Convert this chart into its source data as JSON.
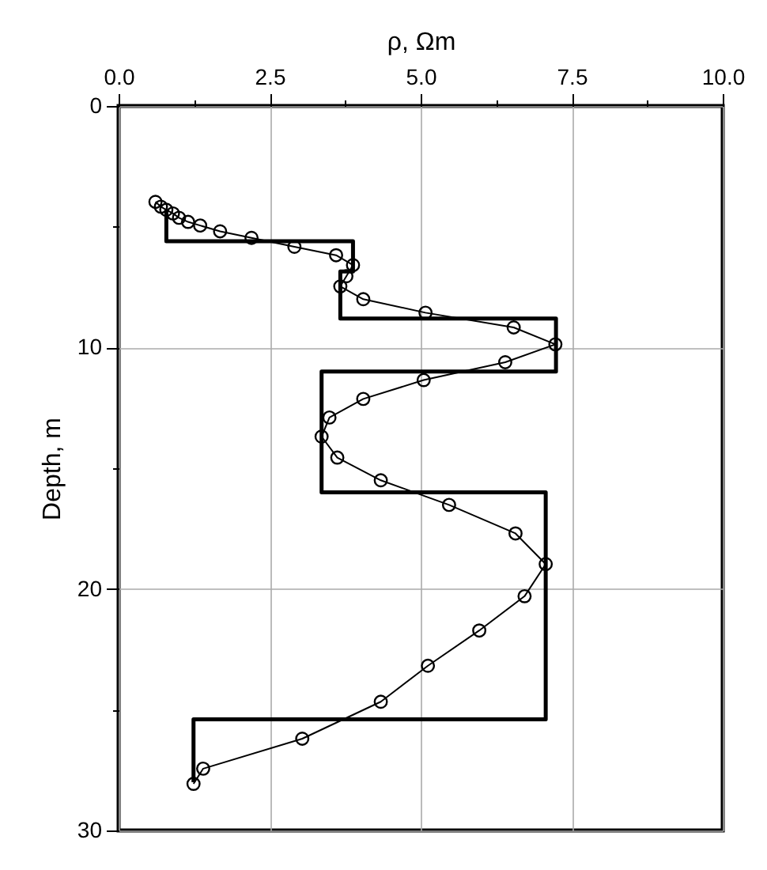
{
  "chart_data": {
    "type": "line",
    "xlabel": "ρ, Ωm",
    "ylabel": "Depth, m",
    "xlim": [
      0,
      10
    ],
    "ylim": [
      30,
      0
    ],
    "xticks": [
      {
        "value": 0,
        "label": "0.0"
      },
      {
        "value": 1.25,
        "label": null
      },
      {
        "value": 2.5,
        "label": "2.5"
      },
      {
        "value": 3.75,
        "label": null
      },
      {
        "value": 5,
        "label": "5.0"
      },
      {
        "value": 6.25,
        "label": null
      },
      {
        "value": 7.5,
        "label": "7.5"
      },
      {
        "value": 8.75,
        "label": null
      },
      {
        "value": 10,
        "label": "10.0"
      }
    ],
    "yticks": [
      0,
      {
        "value": 5,
        "label": null
      },
      10,
      {
        "value": 15,
        "label": null
      },
      20,
      {
        "value": 25,
        "label": null
      },
      30
    ],
    "grid": true,
    "marker": "circle",
    "series": [
      {
        "color": "#000000",
        "marker": "none",
        "x": [
          0.79,
          0.79,
          3.88,
          3.88,
          3.67,
          3.67,
          7.24,
          7.24,
          3.36,
          3.36,
          7.07,
          7.07,
          1.24,
          1.24
        ],
        "values": [
          4.3,
          5.6,
          5.6,
          6.85,
          6.85,
          8.8,
          8.8,
          11.0,
          11.0,
          16.0,
          16.0,
          25.4,
          25.4,
          28.0
        ]
      },
      {
        "color": "#000000",
        "x": [
          0.61,
          0.7,
          0.79,
          0.9,
          1.0,
          1.15,
          1.35,
          1.68,
          2.2,
          2.91,
          3.6,
          3.88,
          3.77,
          3.67,
          4.05,
          5.08,
          6.54,
          7.23,
          6.4,
          5.05,
          4.05,
          3.49,
          3.36,
          3.62,
          4.34,
          5.47,
          6.57,
          7.07,
          6.72,
          5.97,
          5.12,
          4.34,
          3.04,
          1.4,
          1.24
        ],
        "values": [
          3.97,
          4.17,
          4.3,
          4.45,
          4.63,
          4.8,
          4.95,
          5.19,
          5.46,
          5.83,
          6.18,
          6.59,
          7.05,
          7.47,
          8.0,
          8.56,
          9.17,
          9.87,
          10.61,
          11.35,
          12.13,
          12.9,
          13.69,
          14.56,
          15.5,
          16.52,
          17.7,
          18.97,
          20.3,
          21.72,
          23.18,
          24.67,
          26.2,
          27.44,
          28.07
        ]
      }
    ]
  }
}
